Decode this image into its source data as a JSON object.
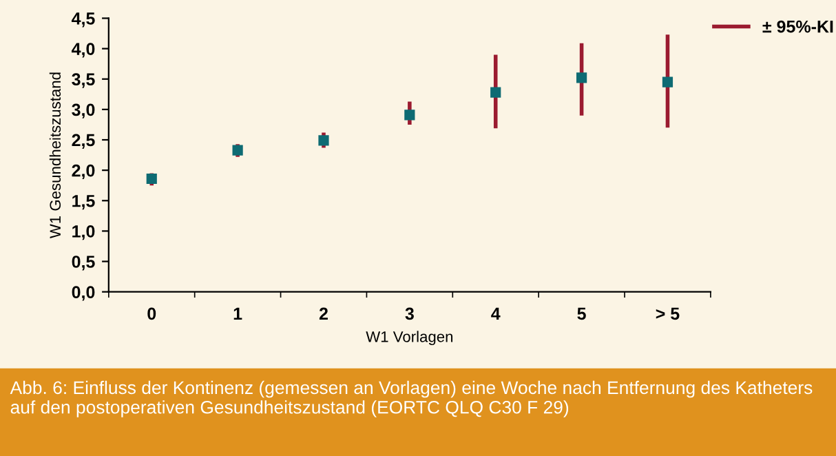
{
  "chart_data": {
    "type": "scatter",
    "xlabel": "W1 Vorlagen",
    "ylabel": "W1 Gesundheitszustand",
    "categories": [
      "0",
      "1",
      "2",
      "3",
      "4",
      "5",
      "> 5"
    ],
    "series": [
      {
        "name": "± 95%-KI",
        "color": "#0e6b73",
        "values": [
          1.86,
          2.33,
          2.49,
          2.91,
          3.28,
          3.52,
          3.45
        ],
        "errors": [
          [
            1.75,
            1.95
          ],
          [
            2.22,
            2.43
          ],
          [
            2.37,
            2.62
          ],
          [
            2.75,
            3.13
          ],
          [
            2.69,
            3.9
          ],
          [
            2.9,
            4.09
          ],
          [
            2.7,
            4.23
          ]
        ]
      }
    ],
    "ylim": [
      0,
      4.5
    ],
    "yticks": [
      {
        "value": 0,
        "label": "0,0"
      },
      {
        "value": 0.5,
        "label": "0,5"
      },
      {
        "value": 1,
        "label": "1,0"
      },
      {
        "value": 1.5,
        "label": "1,5"
      },
      {
        "value": 2,
        "label": "2,0"
      },
      {
        "value": 2.5,
        "label": "2,5"
      },
      {
        "value": 3,
        "label": "3,0"
      },
      {
        "value": 3.5,
        "label": "3,5"
      },
      {
        "value": 4,
        "label": "4,0"
      },
      {
        "value": 4.5,
        "label": "4,5"
      }
    ],
    "marker": "square",
    "grid": false,
    "legend": "top right",
    "annotations": [
      "Abb. 6: Einfluss der Kontinenz (gemessen an Vorlagen) eine Woche nach Entfernung des Katheters auf den postoperativen Gesundheitszustand (EORTC QLQ C30 F 29)"
    ]
  }
}
